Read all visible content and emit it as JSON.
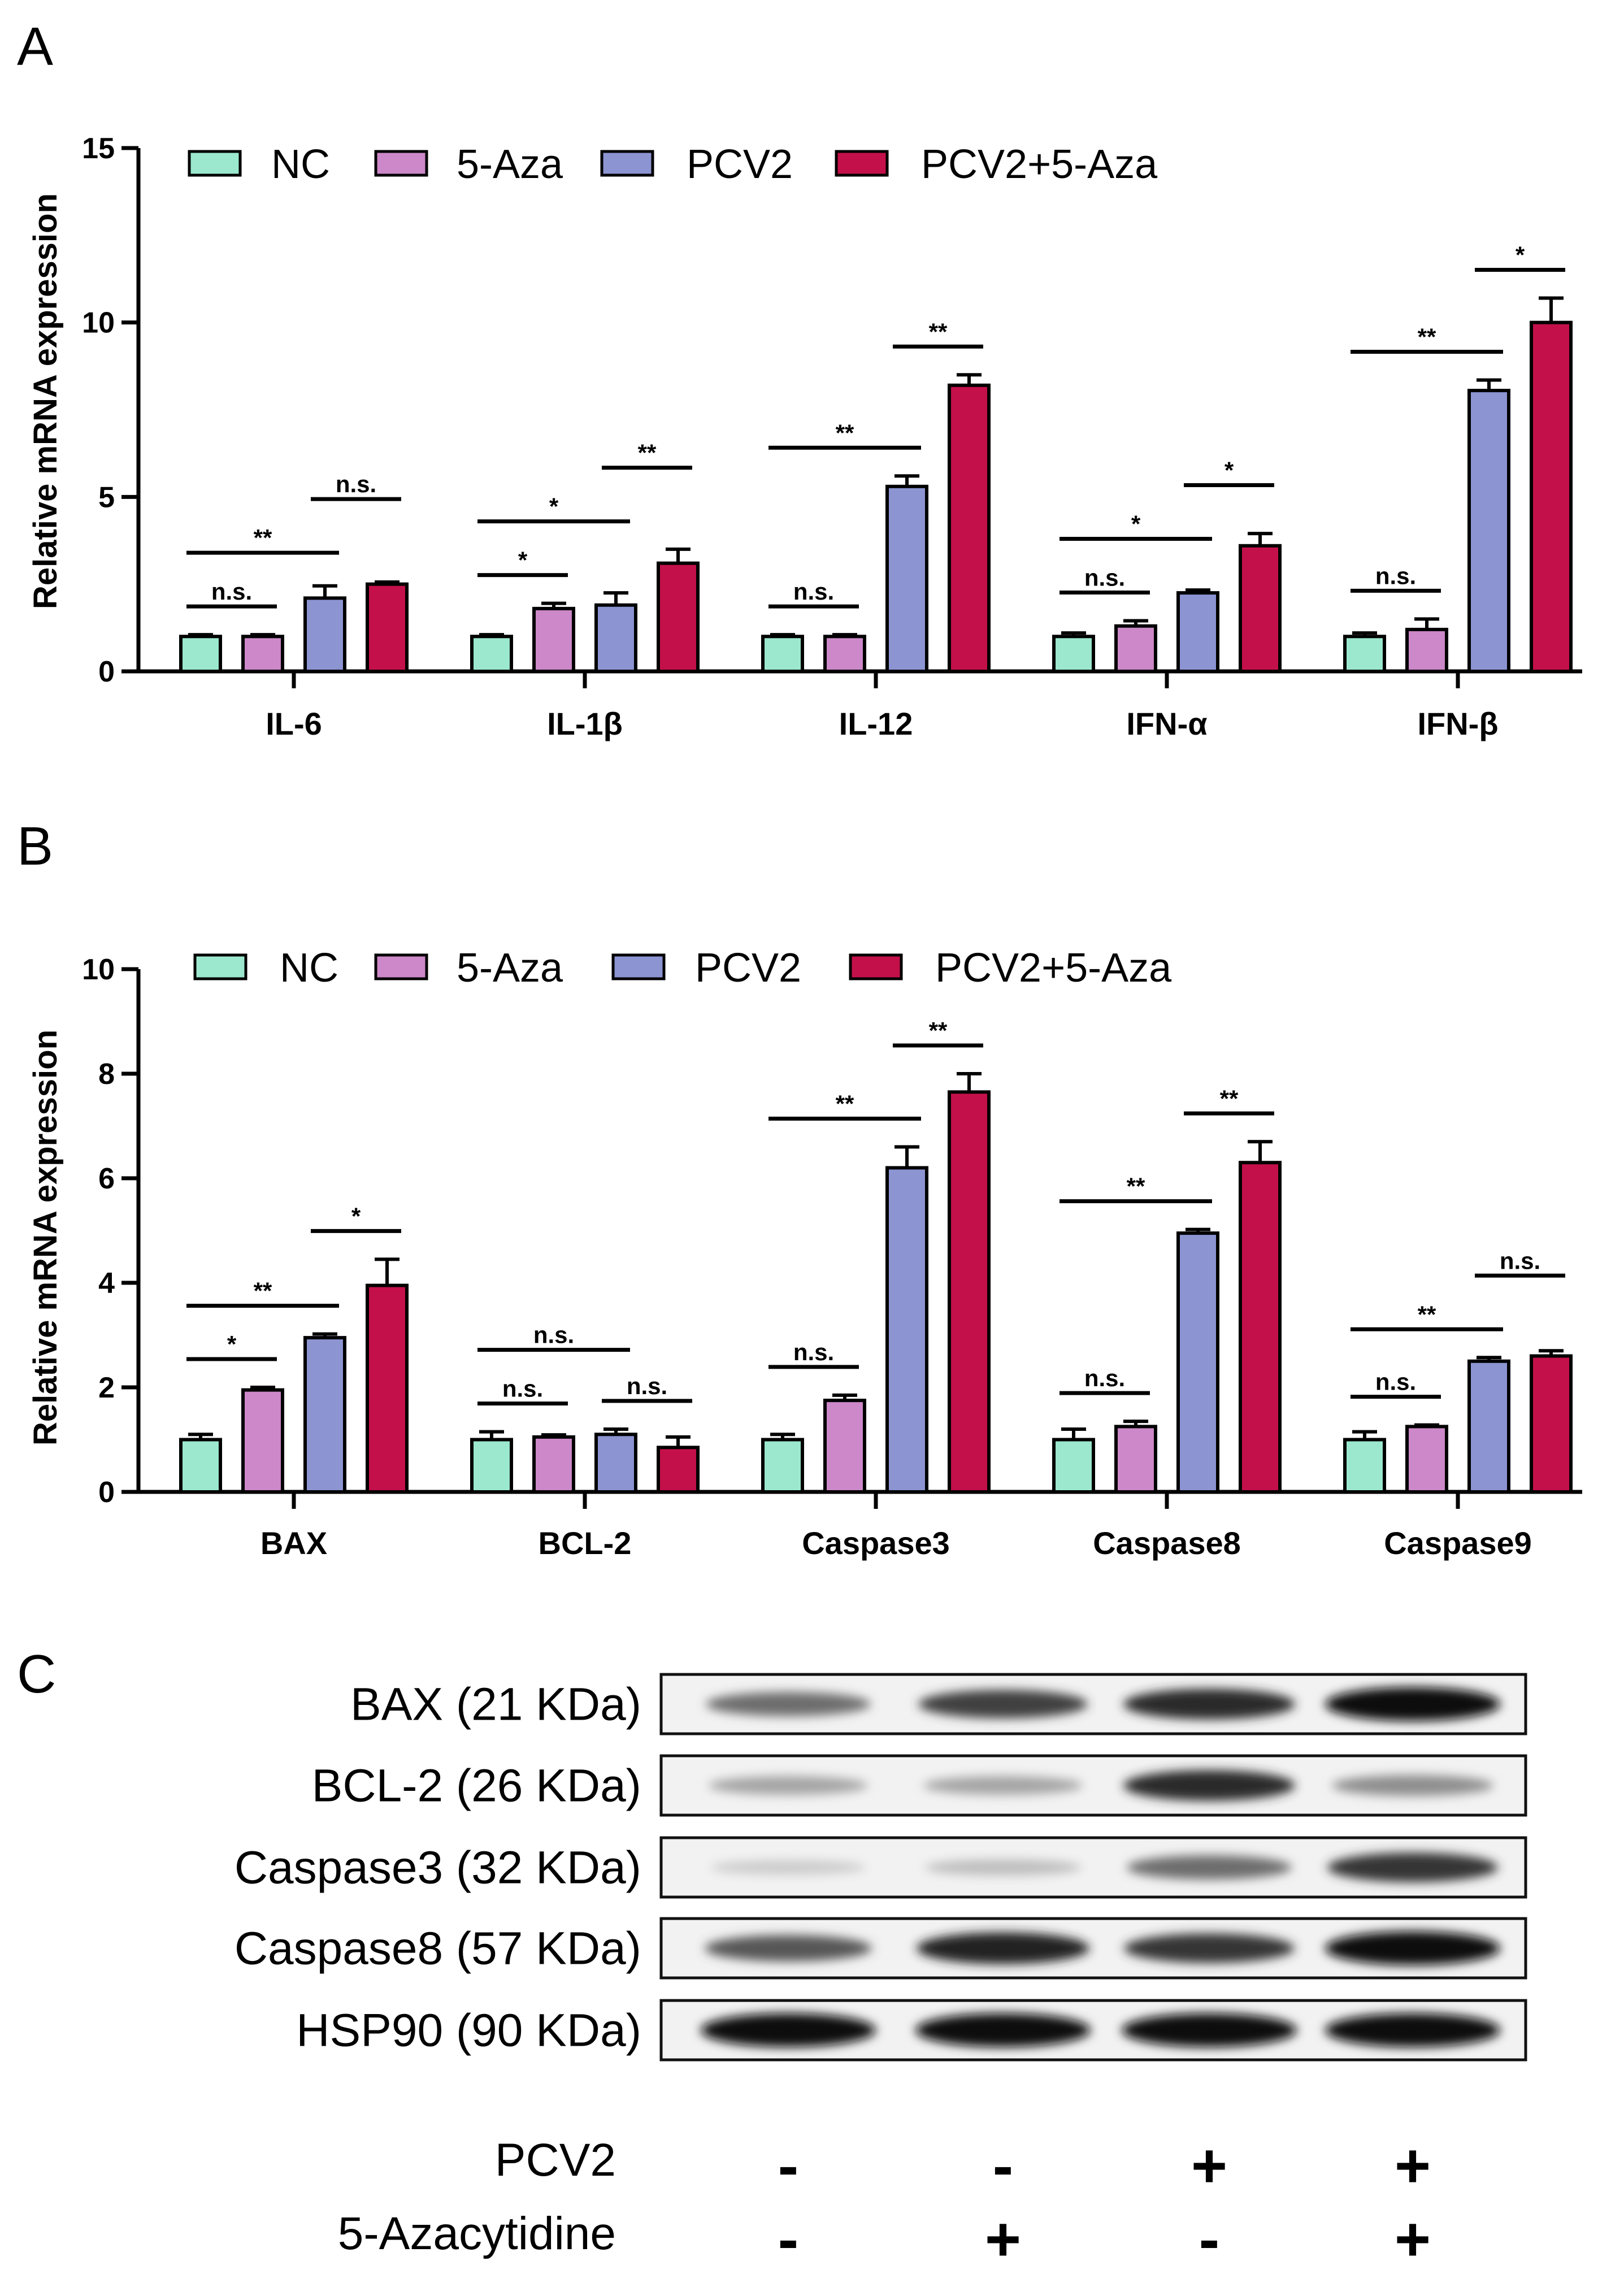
{
  "chart_data": [
    {
      "panel": "A",
      "type": "bar",
      "ylabel": "Relative mRNA expression",
      "ylim": [
        0,
        15
      ],
      "yticks": [
        "0",
        "5",
        "10",
        "15"
      ],
      "legend_position": "top-left",
      "categories": [
        "IL-6",
        "IL-1β",
        "IL-12",
        "IFN-α",
        "IFN-β"
      ],
      "series": [
        {
          "name": "NC",
          "color": "#9be8cf",
          "values": [
            1.0,
            1.0,
            1.0,
            1.0,
            1.0
          ],
          "errors": [
            0.05,
            0.05,
            0.05,
            0.1,
            0.1
          ]
        },
        {
          "name": "5-Aza",
          "color": "#cc88c8",
          "values": [
            1.0,
            1.8,
            1.0,
            1.3,
            1.2
          ],
          "errors": [
            0.05,
            0.15,
            0.05,
            0.15,
            0.3
          ]
        },
        {
          "name": "PCV2",
          "color": "#8c94d2",
          "values": [
            2.1,
            1.9,
            5.3,
            2.25,
            8.05
          ],
          "errors": [
            0.35,
            0.35,
            0.3,
            0.08,
            0.3
          ]
        },
        {
          "name": "PCV2+5-Aza",
          "color": "#c4104a",
          "values": [
            2.5,
            3.1,
            8.2,
            3.6,
            10.0
          ],
          "errors": [
            0.06,
            0.4,
            0.3,
            0.35,
            0.7
          ]
        }
      ],
      "significance": [
        [
          {
            "from": 0,
            "to": 1,
            "label": "n.s."
          },
          {
            "from": 0,
            "to": 2,
            "label": "**"
          },
          {
            "from": 2,
            "to": 3,
            "label": "n.s."
          }
        ],
        [
          {
            "from": 0,
            "to": 1,
            "label": "*"
          },
          {
            "from": 0,
            "to": 2,
            "label": "*"
          },
          {
            "from": 2,
            "to": 3,
            "label": "**"
          }
        ],
        [
          {
            "from": 0,
            "to": 1,
            "label": "n.s."
          },
          {
            "from": 0,
            "to": 2,
            "label": "**"
          },
          {
            "from": 2,
            "to": 3,
            "label": "**"
          }
        ],
        [
          {
            "from": 0,
            "to": 1,
            "label": "n.s."
          },
          {
            "from": 0,
            "to": 2,
            "label": "*"
          },
          {
            "from": 2,
            "to": 3,
            "label": "*"
          }
        ],
        [
          {
            "from": 0,
            "to": 1,
            "label": "n.s."
          },
          {
            "from": 0,
            "to": 2,
            "label": "**"
          },
          {
            "from": 2,
            "to": 3,
            "label": "*"
          }
        ]
      ]
    },
    {
      "panel": "B",
      "type": "bar",
      "ylabel": "Relative mRNA expression",
      "ylim": [
        0,
        10
      ],
      "yticks": [
        "0",
        "2",
        "4",
        "6",
        "8",
        "10"
      ],
      "legend_position": "top-left",
      "categories": [
        "BAX",
        "BCL-2",
        "Caspase3",
        "Caspase8",
        "Caspase9"
      ],
      "series": [
        {
          "name": "NC",
          "color": "#9be8cf",
          "values": [
            1.0,
            1.0,
            1.0,
            1.0,
            1.0
          ],
          "errors": [
            0.1,
            0.15,
            0.1,
            0.2,
            0.15
          ]
        },
        {
          "name": "5-Aza",
          "color": "#cc88c8",
          "values": [
            1.95,
            1.05,
            1.75,
            1.25,
            1.25
          ],
          "errors": [
            0.05,
            0.04,
            0.1,
            0.1,
            0.03
          ]
        },
        {
          "name": "PCV2",
          "color": "#8c94d2",
          "values": [
            2.95,
            1.1,
            6.2,
            4.95,
            2.5
          ],
          "errors": [
            0.07,
            0.1,
            0.4,
            0.07,
            0.07
          ]
        },
        {
          "name": "PCV2+5-Aza",
          "color": "#c4104a",
          "values": [
            3.95,
            0.85,
            7.65,
            6.3,
            2.6
          ],
          "errors": [
            0.5,
            0.2,
            0.35,
            0.4,
            0.1
          ]
        }
      ],
      "significance": [
        [
          {
            "from": 0,
            "to": 1,
            "label": "*"
          },
          {
            "from": 0,
            "to": 2,
            "label": "**"
          },
          {
            "from": 2,
            "to": 3,
            "label": "*"
          }
        ],
        [
          {
            "from": 0,
            "to": 1,
            "label": "n.s."
          },
          {
            "from": 0,
            "to": 2,
            "label": "n.s."
          },
          {
            "from": 2,
            "to": 3,
            "label": "n.s."
          }
        ],
        [
          {
            "from": 0,
            "to": 1,
            "label": "n.s."
          },
          {
            "from": 0,
            "to": 2,
            "label": "**"
          },
          {
            "from": 2,
            "to": 3,
            "label": "**"
          }
        ],
        [
          {
            "from": 0,
            "to": 1,
            "label": "n.s."
          },
          {
            "from": 0,
            "to": 2,
            "label": "**"
          },
          {
            "from": 2,
            "to": 3,
            "label": "**"
          }
        ],
        [
          {
            "from": 0,
            "to": 1,
            "label": "n.s."
          },
          {
            "from": 0,
            "to": 2,
            "label": "**"
          },
          {
            "from": 2,
            "to": 3,
            "label": "n.s."
          }
        ]
      ]
    }
  ],
  "panels": {
    "a": "A",
    "b": "B",
    "c": "C"
  },
  "blot": {
    "rows": [
      {
        "label": "BAX (21 KDa)",
        "intensity": [
          0.55,
          0.75,
          0.85,
          1.0
        ]
      },
      {
        "label": "BCL-2 (26 KDa)",
        "intensity": [
          0.3,
          0.3,
          0.85,
          0.4
        ]
      },
      {
        "label": "Caspase3 (32 KDa)",
        "intensity": [
          0.12,
          0.18,
          0.55,
          0.8
        ]
      },
      {
        "label": "Caspase8 (57 KDa)",
        "intensity": [
          0.65,
          0.9,
          0.8,
          1.0
        ]
      },
      {
        "label": "HSP90 (90 KDa)",
        "intensity": [
          1.0,
          1.0,
          1.0,
          1.0
        ]
      }
    ],
    "conditions": [
      {
        "label": "PCV2",
        "signs": [
          "-",
          "-",
          "+",
          "+"
        ]
      },
      {
        "label": "5-Azacytidine",
        "signs": [
          "-",
          "+",
          "-",
          "+"
        ]
      }
    ]
  }
}
